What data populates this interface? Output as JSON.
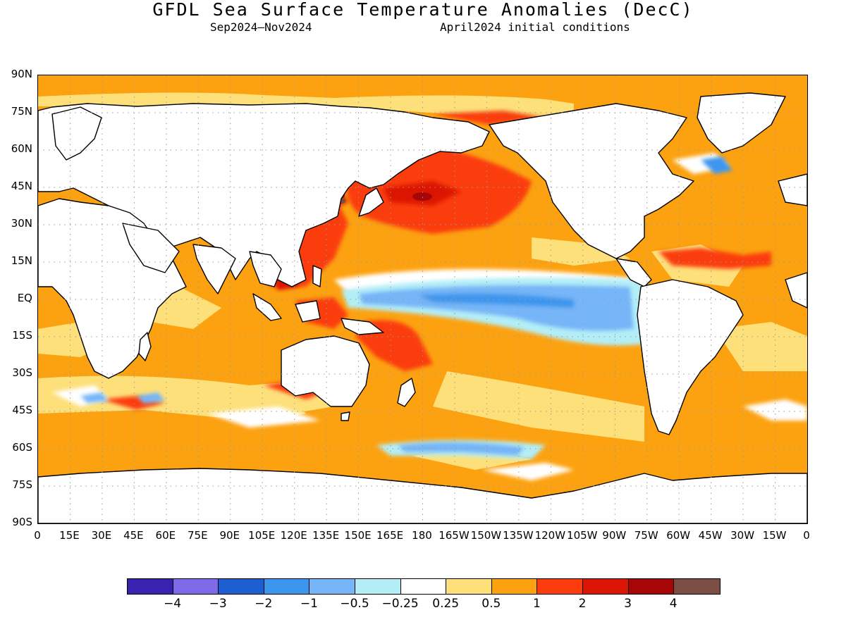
{
  "title": "GFDL Sea Surface Temperature Anomalies (DecC)",
  "subtitle_left": "Sep2024–Nov2024",
  "subtitle_right": "April2024 initial conditions",
  "lat_labels": [
    "90N",
    "75N",
    "60N",
    "45N",
    "30N",
    "15N",
    "EQ",
    "15S",
    "30S",
    "45S",
    "60S",
    "75S",
    "90S"
  ],
  "lon_labels": [
    "0",
    "15E",
    "30E",
    "45E",
    "60E",
    "75E",
    "90E",
    "105E",
    "120E",
    "135E",
    "150E",
    "165E",
    "180",
    "165W",
    "150W",
    "135W",
    "120W",
    "105W",
    "90W",
    "75W",
    "60W",
    "45W",
    "30W",
    "15W",
    "0"
  ],
  "colorbar": {
    "colors": [
      "#3a22b0",
      "#7d6ae8",
      "#1d5fd0",
      "#3c96ee",
      "#76b5f7",
      "#b3eef7",
      "#ffffff",
      "#fde07a",
      "#fca211",
      "#fb3c0f",
      "#db1606",
      "#a60606",
      "#7b4d43"
    ],
    "labels": [
      "−4",
      "−3",
      "−2",
      "−1",
      "−0.5",
      "−0.25",
      "0.25",
      "0.5",
      "1",
      "2",
      "3",
      "4"
    ]
  },
  "palette": {
    "land": "#ffffff",
    "coast": "#000000",
    "grid": "#9a9a9a"
  }
}
